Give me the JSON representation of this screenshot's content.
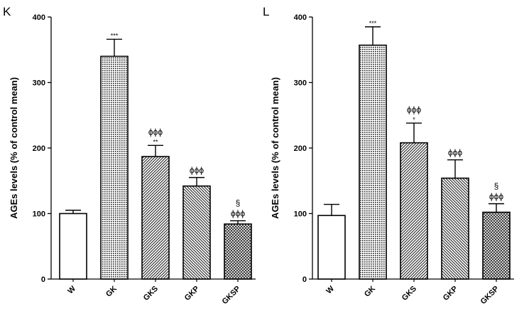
{
  "chart_data": [
    {
      "type": "bar",
      "panel_label": "K",
      "ylabel": "AGEs levels (% of control mean)",
      "ylim": [
        0,
        400
      ],
      "yticks": [
        0,
        100,
        200,
        300,
        400
      ],
      "categories": [
        "W",
        "GK",
        "GKS",
        "GKP",
        "GKSP"
      ],
      "values": [
        100,
        340,
        187,
        142,
        84
      ],
      "errors": [
        5,
        26,
        17,
        13,
        5
      ],
      "annotations": [
        {
          "category": "GK",
          "lines": [
            "***"
          ]
        },
        {
          "category": "GKS",
          "lines": [
            "ϕϕϕ",
            "**"
          ]
        },
        {
          "category": "GKP",
          "lines": [
            "ϕϕϕ"
          ]
        },
        {
          "category": "GKSP",
          "lines": [
            "§",
            "ϕϕϕ"
          ]
        }
      ],
      "fills": [
        "white",
        "dots",
        "diag-right",
        "diag-left",
        "checker"
      ],
      "grid": false,
      "legend": "none"
    },
    {
      "type": "bar",
      "panel_label": "L",
      "ylabel": "AGEs levels (% of control mean)",
      "ylim": [
        0,
        400
      ],
      "yticks": [
        0,
        100,
        200,
        300,
        400
      ],
      "categories": [
        "W",
        "GK",
        "GKS",
        "GKP",
        "GKSP"
      ],
      "values": [
        97,
        357,
        208,
        154,
        102
      ],
      "errors": [
        17,
        28,
        30,
        28,
        13
      ],
      "annotations": [
        {
          "category": "GK",
          "lines": [
            "***"
          ]
        },
        {
          "category": "GKS",
          "lines": [
            "ϕϕϕ",
            "*"
          ]
        },
        {
          "category": "GKP",
          "lines": [
            "ϕϕϕ"
          ]
        },
        {
          "category": "GKSP",
          "lines": [
            "§",
            "ϕϕϕ"
          ]
        }
      ],
      "fills": [
        "white",
        "dots",
        "diag-right",
        "diag-left",
        "checker"
      ],
      "grid": false,
      "legend": "none"
    }
  ]
}
